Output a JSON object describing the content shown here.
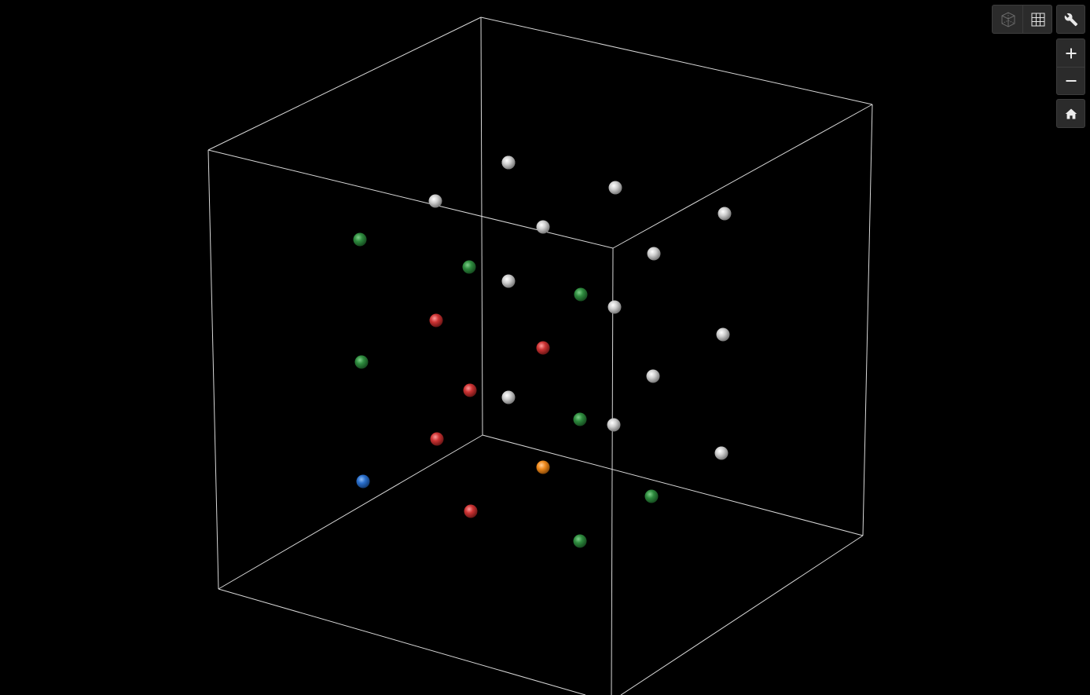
{
  "viewer": {
    "background": "#000000",
    "box_color": "#d8d8d8"
  },
  "toolbar": {
    "view_mode_buttons": [
      {
        "name": "perspective-view-button",
        "icon": "wireframe-cube-icon",
        "state": "inactive"
      },
      {
        "name": "grid-view-button",
        "icon": "grid-icon",
        "state": "active"
      }
    ],
    "settings_button": {
      "icon": "wrench-icon"
    },
    "zoom_in_button": {
      "icon": "plus-icon"
    },
    "zoom_out_button": {
      "icon": "minus-icon"
    },
    "home_button": {
      "icon": "home-icon"
    }
  },
  "legend_colors": {
    "gray": "#c8c8c8",
    "green": "#2e8b3e",
    "red": "#cc3333",
    "blue": "#2a6fcc",
    "orange": "#f08a1c"
  },
  "spheres": [
    {
      "color": "gray"
    },
    {
      "color": "gray"
    },
    {
      "color": "gray"
    },
    {
      "color": "gray"
    },
    {
      "color": "gray"
    },
    {
      "color": "gray"
    },
    {
      "color": "gray"
    },
    {
      "color": "gray"
    },
    {
      "color": "gray"
    },
    {
      "color": "gray"
    },
    {
      "color": "gray"
    },
    {
      "color": "gray"
    },
    {
      "color": "gray"
    },
    {
      "color": "gray"
    },
    {
      "color": "green"
    },
    {
      "color": "green"
    },
    {
      "color": "green"
    },
    {
      "color": "green"
    },
    {
      "color": "green"
    },
    {
      "color": "green"
    },
    {
      "color": "green"
    },
    {
      "color": "red"
    },
    {
      "color": "red"
    },
    {
      "color": "red"
    },
    {
      "color": "red"
    },
    {
      "color": "red"
    },
    {
      "color": "blue"
    },
    {
      "color": "orange"
    }
  ]
}
